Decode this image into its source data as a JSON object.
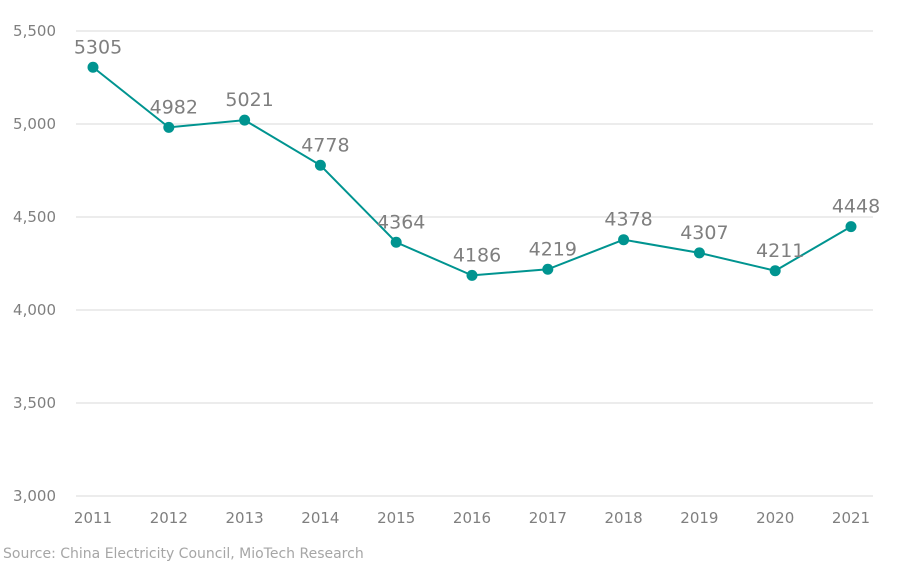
{
  "chart_data": {
    "type": "line",
    "title": "",
    "xlabel": "",
    "ylabel": "",
    "categories": [
      "2011",
      "2012",
      "2013",
      "2014",
      "2015",
      "2016",
      "2017",
      "2018",
      "2019",
      "2020",
      "2021"
    ],
    "series": [
      {
        "name": "",
        "values": [
          5305,
          4982,
          5021,
          4778,
          4364,
          4186,
          4219,
          4378,
          4307,
          4211,
          4448
        ],
        "color": "#009490"
      }
    ],
    "ylim": [
      3000,
      5500
    ],
    "yticks": [
      3000,
      3500,
      4000,
      4500,
      5000,
      5500
    ],
    "ytick_labels": [
      "3,000",
      "3,500",
      "4,000",
      "4,500",
      "5,000",
      "5,500"
    ],
    "grid": true,
    "legend": "none",
    "source": "Source: China Electricity Council, MioTech Research"
  }
}
